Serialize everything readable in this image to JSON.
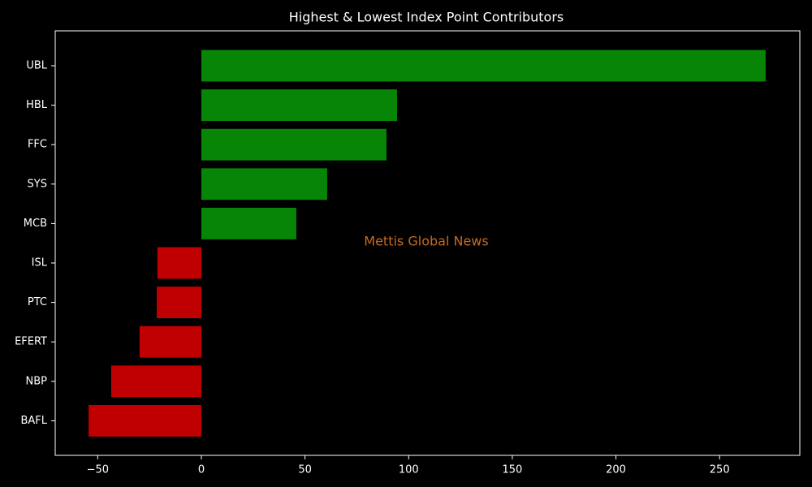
{
  "chart_data": {
    "type": "barh",
    "title": "Highest & Lowest Index Point Contributors",
    "annotation": "Mettis Global News",
    "categories": [
      "UBL",
      "HBL",
      "FFC",
      "SYS",
      "MCB",
      "ISL",
      "PTC",
      "EFERT",
      "NBP",
      "BAFL"
    ],
    "values": [
      272.2,
      94.4,
      89.3,
      60.7,
      45.8,
      -21.2,
      -21.5,
      -29.8,
      -43.5,
      -54.4
    ],
    "colors": [
      "#078507",
      "#078507",
      "#078507",
      "#078507",
      "#078507",
      "#c00000",
      "#c00000",
      "#c00000",
      "#c00000",
      "#c00000"
    ],
    "xlim": [
      -70.5,
      288.7
    ],
    "xticks": [
      {
        "value": -50,
        "label": "−50"
      },
      0,
      50,
      100,
      150,
      200,
      250
    ],
    "grid": false
  }
}
